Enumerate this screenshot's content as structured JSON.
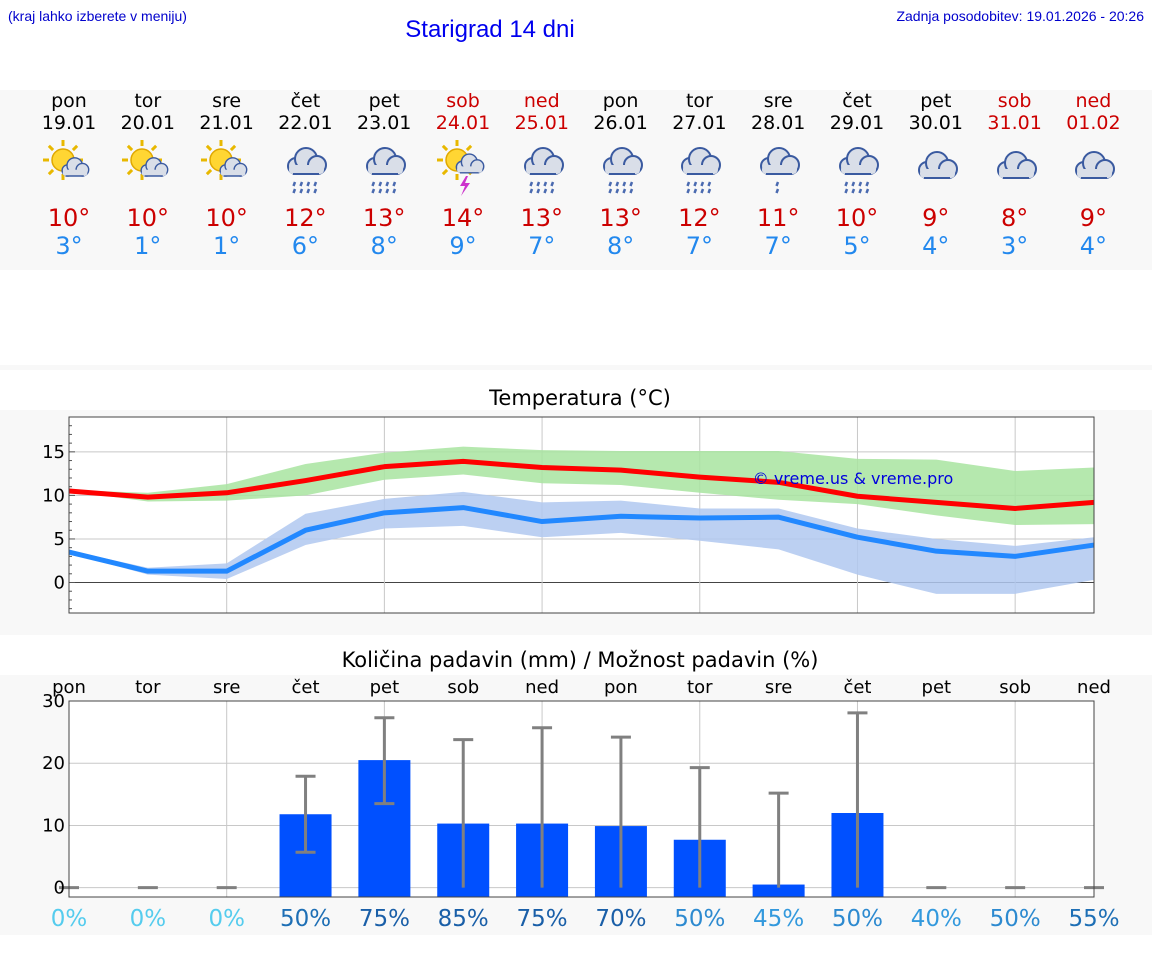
{
  "header": {
    "menu_hint": "(kraj lahko izberete v meniju)",
    "title": "Starigrad 14 dni",
    "last_update": "Zadnja posodobitev: 19.01.2026 - 20:26"
  },
  "days": [
    {
      "name": "pon",
      "date": "19.01",
      "tmax": "10°",
      "tmin": "3°",
      "icon": "sun-cloud-icon",
      "weekend": false
    },
    {
      "name": "tor",
      "date": "20.01",
      "tmax": "10°",
      "tmin": "1°",
      "icon": "sun-cloud-icon",
      "weekend": false
    },
    {
      "name": "sre",
      "date": "21.01",
      "tmax": "10°",
      "tmin": "1°",
      "icon": "sun-cloud-icon",
      "weekend": false
    },
    {
      "name": "čet",
      "date": "22.01",
      "tmax": "12°",
      "tmin": "6°",
      "icon": "rain-cloud-icon",
      "weekend": false
    },
    {
      "name": "pet",
      "date": "23.01",
      "tmax": "13°",
      "tmin": "8°",
      "icon": "rain-cloud-icon",
      "weekend": false
    },
    {
      "name": "sob",
      "date": "24.01",
      "tmax": "14°",
      "tmin": "9°",
      "icon": "sun-thunder-icon",
      "weekend": true
    },
    {
      "name": "ned",
      "date": "25.01",
      "tmax": "13°",
      "tmin": "7°",
      "icon": "rain-cloud-icon",
      "weekend": true
    },
    {
      "name": "pon",
      "date": "26.01",
      "tmax": "13°",
      "tmin": "8°",
      "icon": "rain-cloud-icon",
      "weekend": false
    },
    {
      "name": "tor",
      "date": "27.01",
      "tmax": "12°",
      "tmin": "7°",
      "icon": "rain-cloud-icon",
      "weekend": false
    },
    {
      "name": "sre",
      "date": "28.01",
      "tmax": "11°",
      "tmin": "7°",
      "icon": "light-rain-cloud-icon",
      "weekend": false
    },
    {
      "name": "čet",
      "date": "29.01",
      "tmax": "10°",
      "tmin": "5°",
      "icon": "rain-cloud-icon",
      "weekend": false
    },
    {
      "name": "pet",
      "date": "30.01",
      "tmax": "9°",
      "tmin": "4°",
      "icon": "cloud-icon",
      "weekend": false
    },
    {
      "name": "sob",
      "date": "31.01",
      "tmax": "8°",
      "tmin": "3°",
      "icon": "cloud-icon",
      "weekend": true
    },
    {
      "name": "ned",
      "date": "01.02",
      "tmax": "9°",
      "tmin": "4°",
      "icon": "cloud-icon",
      "weekend": true
    }
  ],
  "colors": {
    "title_blue": "#0000ee",
    "max_red": "#cc0000",
    "min_blue": "#2288ee",
    "max_line": "#ff0000",
    "min_line": "#2288ff",
    "max_band": "#a8e4a0",
    "min_band": "#b0c8f0",
    "bar": "#0050ff",
    "errbar": "#808080"
  },
  "chart_data": [
    {
      "type": "line",
      "title": "Temperatura (°C)",
      "watermark": "© vreme.us & vreme.pro",
      "ylim": [
        -3.5,
        19
      ],
      "yticks": [
        0,
        5,
        10,
        15
      ],
      "ytick_labels": [
        "0",
        "5",
        "10",
        "15"
      ],
      "x": [
        0,
        1,
        2,
        3,
        4,
        5,
        6,
        7,
        8,
        9,
        10,
        11,
        12,
        13
      ],
      "series": [
        {
          "name": "max",
          "values": [
            10.5,
            9.8,
            10.3,
            11.7,
            13.3,
            13.9,
            13.2,
            12.9,
            12.1,
            11.5,
            9.9,
            9.2,
            8.5,
            9.2
          ]
        },
        {
          "name": "min",
          "values": [
            3.5,
            1.3,
            1.3,
            6.0,
            8.0,
            8.6,
            7.0,
            7.6,
            7.4,
            7.5,
            5.2,
            3.6,
            3.0,
            4.3
          ]
        }
      ],
      "bands": [
        {
          "name": "max_range",
          "low": [
            10.5,
            9.3,
            9.4,
            10.0,
            11.8,
            12.4,
            11.4,
            11.2,
            10.3,
            9.5,
            9.0,
            7.7,
            6.6,
            6.7
          ],
          "high": [
            10.6,
            10.3,
            11.3,
            13.6,
            14.9,
            15.6,
            15.2,
            15.1,
            15.1,
            15.1,
            14.2,
            14.1,
            12.8,
            13.2
          ]
        },
        {
          "name": "min_range",
          "low": [
            3.4,
            0.9,
            0.4,
            4.3,
            6.2,
            6.5,
            5.2,
            5.7,
            4.8,
            3.8,
            0.9,
            -1.3,
            -1.3,
            0.3
          ],
          "high": [
            3.7,
            1.7,
            2.2,
            7.9,
            9.6,
            10.4,
            9.2,
            9.4,
            8.5,
            8.5,
            6.2,
            5.0,
            4.2,
            5.2
          ]
        }
      ]
    },
    {
      "type": "bar",
      "title": "Količina padavin (mm) / Možnost padavin (%)",
      "categories": [
        "pon",
        "tor",
        "sre",
        "čet",
        "pet",
        "sob",
        "ned",
        "pon",
        "tor",
        "sre",
        "čet",
        "pet",
        "sob",
        "ned"
      ],
      "ylim": [
        -1.5,
        30
      ],
      "yticks": [
        0,
        10,
        20,
        30
      ],
      "ytick_labels": [
        "0",
        "10",
        "20",
        "30"
      ],
      "values": [
        0,
        0,
        0,
        11.8,
        20.5,
        10.3,
        10.3,
        9.9,
        7.7,
        0.5,
        12.0,
        0,
        0,
        0
      ],
      "err_low": [
        0,
        0,
        0,
        5.7,
        13.5,
        0,
        0,
        0,
        0,
        0,
        0,
        0,
        0,
        0
      ],
      "err_high": [
        0,
        0,
        0,
        17.9,
        27.3,
        23.8,
        25.7,
        24.2,
        19.3,
        15.2,
        28.1,
        0,
        0,
        0
      ],
      "probability": [
        "0%",
        "0%",
        "0%",
        "50%",
        "75%",
        "85%",
        "75%",
        "70%",
        "50%",
        "45%",
        "50%",
        "40%",
        "50%",
        "55%"
      ],
      "probability_colors": [
        "#55ccee",
        "#55ccee",
        "#55ccee",
        "#1e6fb5",
        "#1a5fa8",
        "#1a5fa8",
        "#1a5fa8",
        "#1a5fa8",
        "#2d8ad0",
        "#3399dd",
        "#2d8ad0",
        "#3399dd",
        "#2d8ad0",
        "#1e6fb5"
      ]
    }
  ]
}
